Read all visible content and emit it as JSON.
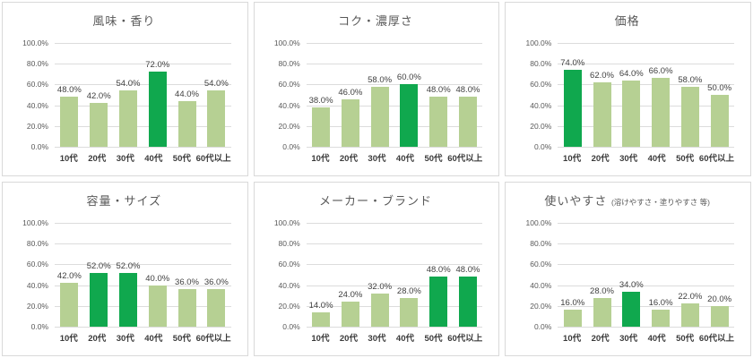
{
  "style": {
    "bar_color": "#b6d093",
    "highlight_color": "#10a84e",
    "grid_color": "#dcdcdc",
    "panel_border_color": "#d9d9d9",
    "title_color": "#595959",
    "tick_color": "#595959",
    "label_color": "#404040",
    "background": "#ffffff"
  },
  "y_ticks": [
    "100.0%",
    "80.0%",
    "60.0%",
    "40.0%",
    "20.0%",
    "0.0%"
  ],
  "chart_data": [
    {
      "type": "bar",
      "title": "風味・香り",
      "subtitle": "",
      "categories": [
        "10代",
        "20代",
        "30代",
        "40代",
        "50代",
        "60代以上"
      ],
      "values": [
        48,
        42,
        54,
        72,
        44,
        54
      ],
      "value_labels": [
        "48.0%",
        "42.0%",
        "54.0%",
        "72.0%",
        "44.0%",
        "54.0%"
      ],
      "highlight_indices": [
        3
      ],
      "ylim": [
        0,
        100
      ],
      "grid": true,
      "legend": false
    },
    {
      "type": "bar",
      "title": "コク・濃厚さ",
      "subtitle": "",
      "categories": [
        "10代",
        "20代",
        "30代",
        "40代",
        "50代",
        "60代以上"
      ],
      "values": [
        38,
        46,
        58,
        60,
        48,
        48
      ],
      "value_labels": [
        "38.0%",
        "46.0%",
        "58.0%",
        "60.0%",
        "48.0%",
        "48.0%"
      ],
      "highlight_indices": [
        3
      ],
      "ylim": [
        0,
        100
      ],
      "grid": true,
      "legend": false
    },
    {
      "type": "bar",
      "title": "価格",
      "subtitle": "",
      "categories": [
        "10代",
        "20代",
        "30代",
        "40代",
        "50代",
        "60代以上"
      ],
      "values": [
        74,
        62,
        64,
        66,
        58,
        50
      ],
      "value_labels": [
        "74.0%",
        "62.0%",
        "64.0%",
        "66.0%",
        "58.0%",
        "50.0%"
      ],
      "highlight_indices": [
        0
      ],
      "ylim": [
        0,
        100
      ],
      "grid": true,
      "legend": false
    },
    {
      "type": "bar",
      "title": "容量・サイズ",
      "subtitle": "",
      "categories": [
        "10代",
        "20代",
        "30代",
        "40代",
        "50代",
        "60代以上"
      ],
      "values": [
        42,
        52,
        52,
        40,
        36,
        36
      ],
      "value_labels": [
        "42.0%",
        "52.0%",
        "52.0%",
        "40.0%",
        "36.0%",
        "36.0%"
      ],
      "highlight_indices": [
        1,
        2
      ],
      "ylim": [
        0,
        100
      ],
      "grid": true,
      "legend": false
    },
    {
      "type": "bar",
      "title": "メーカー・ブランド",
      "subtitle": "",
      "categories": [
        "10代",
        "20代",
        "30代",
        "40代",
        "50代",
        "60代以上"
      ],
      "values": [
        14,
        24,
        32,
        28,
        48,
        48
      ],
      "value_labels": [
        "14.0%",
        "24.0%",
        "32.0%",
        "28.0%",
        "48.0%",
        "48.0%"
      ],
      "highlight_indices": [
        4,
        5
      ],
      "ylim": [
        0,
        100
      ],
      "grid": true,
      "legend": false
    },
    {
      "type": "bar",
      "title": "使いやすさ",
      "subtitle": "(溶けやすさ・塗りやすさ 等)",
      "categories": [
        "10代",
        "20代",
        "30代",
        "40代",
        "50代",
        "60代以上"
      ],
      "values": [
        16,
        28,
        34,
        16,
        22,
        20
      ],
      "value_labels": [
        "16.0%",
        "28.0%",
        "34.0%",
        "16.0%",
        "22.0%",
        "20.0%"
      ],
      "highlight_indices": [
        2
      ],
      "ylim": [
        0,
        100
      ],
      "grid": true,
      "legend": false
    }
  ]
}
